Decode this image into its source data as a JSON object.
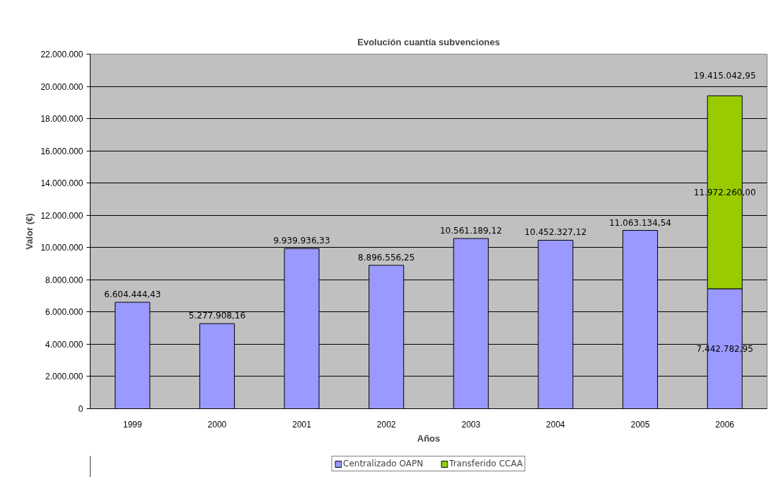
{
  "chart_data": {
    "type": "bar",
    "title": "Evolución cuantía subvenciones",
    "xlabel": "Años",
    "ylabel": "Valor (€)",
    "categories": [
      "1999",
      "2000",
      "2001",
      "2002",
      "2003",
      "2004",
      "2005",
      "2006"
    ],
    "stacked": true,
    "series": [
      {
        "name": "Centralizado OAPN",
        "color": "#9999ff",
        "values": [
          6604444.43,
          5277908.16,
          9939936.33,
          8896556.25,
          10561189.12,
          10452327.12,
          11063134.54,
          7442782.95
        ],
        "value_labels": [
          "6.604.444,43",
          "5.277.908,16",
          "9.939.936,33",
          "8.896.556,25",
          "10.561.189,12",
          "10.452.327,12",
          "11.063.134,54",
          "7.442.782,95"
        ]
      },
      {
        "name": "Transferido CCAA",
        "color": "#99cc00",
        "values": [
          null,
          null,
          null,
          null,
          null,
          null,
          null,
          11972260.0
        ],
        "value_labels": [
          null,
          null,
          null,
          null,
          null,
          null,
          null,
          "11.972.260,00"
        ]
      }
    ],
    "totals": [
      null,
      null,
      null,
      null,
      null,
      null,
      null,
      "19.415.042,95"
    ],
    "ylim": [
      0,
      22000000
    ],
    "yticks": [
      0,
      {
        "value": 2000000,
        "label": "2.000.000"
      },
      {
        "value": 4000000,
        "label": "4.000.000"
      },
      {
        "value": 6000000,
        "label": "6.000.000"
      },
      {
        "value": 8000000,
        "label": "8.000.000"
      },
      {
        "value": 10000000,
        "label": "10.000.000"
      },
      {
        "value": 12000000,
        "label": "12.000.000"
      },
      {
        "value": 14000000,
        "label": "14.000.000"
      },
      {
        "value": 16000000,
        "label": "16.000.000"
      },
      {
        "value": 18000000,
        "label": "18.000.000"
      },
      {
        "value": 20000000,
        "label": "20.000.000"
      },
      {
        "value": 22000000,
        "label": "22.000.000"
      }
    ],
    "grid": "y",
    "legend": "bottom"
  }
}
